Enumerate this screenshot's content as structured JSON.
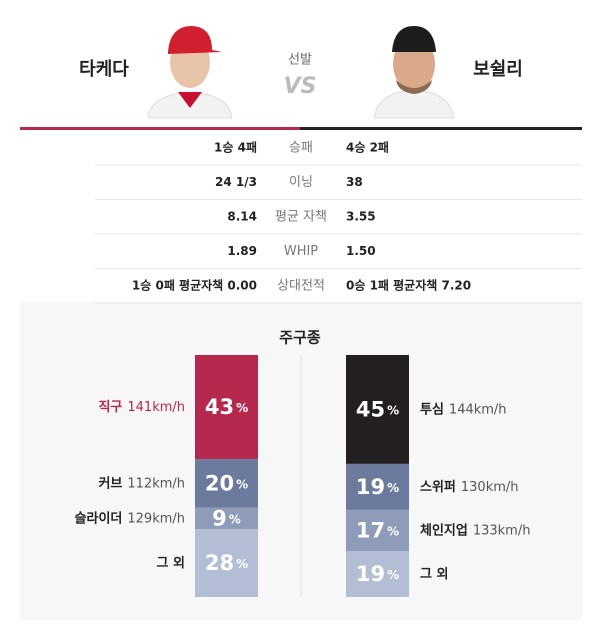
{
  "header": {
    "left_name": "타케다",
    "right_name": "보쉴리",
    "label": "선발",
    "vs": "VS"
  },
  "table": {
    "rows": [
      [
        "1승 4패",
        "승패",
        "4승 2패"
      ],
      [
        "24 1/3",
        "이닝",
        "38"
      ],
      [
        "8.14",
        "평균 자책",
        "3.55"
      ],
      [
        "1.89",
        "WHIP",
        "1.50"
      ],
      [
        "1승 0패 평균자책 0.00",
        "상대전적",
        "0승 1패 평균자책 7.20"
      ]
    ]
  },
  "pitch_mix": {
    "title": "주구종",
    "unit": "%",
    "left": [
      {
        "name": "직구",
        "speed": "141km/h",
        "value": 43,
        "color": "#b5294e"
      },
      {
        "name": "커브",
        "speed": "112km/h",
        "value": 20,
        "color": "#6b7a9d"
      },
      {
        "name": "슬라이더",
        "speed": "129km/h",
        "value": 9,
        "color": "#8e9bb9"
      },
      {
        "name": "그 외",
        "value": 28,
        "color": "#b3bdd3"
      }
    ],
    "right": [
      {
        "name": "투심",
        "speed": "144km/h",
        "value": 45,
        "color": "#231f20"
      },
      {
        "name": "스위퍼",
        "speed": "130km/h",
        "value": 19,
        "color": "#6b7a9d"
      },
      {
        "name": "체인지업",
        "speed": "133km/h",
        "value": 17,
        "color": "#8e9bb9"
      },
      {
        "name": "그 외",
        "value": 19,
        "color": "#b3bdd3"
      }
    ]
  }
}
